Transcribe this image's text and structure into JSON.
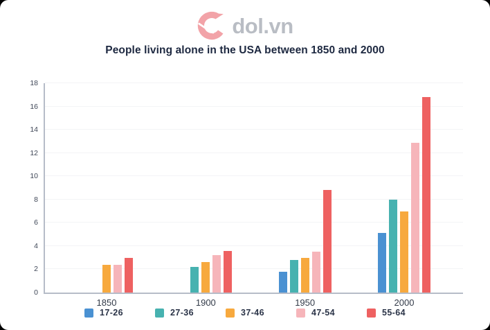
{
  "logo": {
    "text": "dol.vn",
    "mark_color": "#f2a3a8"
  },
  "title": "People living alone in the USA between 1850 and 2000",
  "chart_data": {
    "type": "bar",
    "title": "People living alone in the USA between 1850 and 2000",
    "categories": [
      "1850",
      "1900",
      "1950",
      "2000"
    ],
    "series": [
      {
        "name": "17-26",
        "color": "#4a91d2",
        "values": [
          0,
          0,
          1.8,
          5.1
        ]
      },
      {
        "name": "27-36",
        "color": "#47b2b0",
        "values": [
          0,
          2.2,
          2.8,
          8.0
        ]
      },
      {
        "name": "37-46",
        "color": "#f7a93e",
        "values": [
          2.4,
          2.6,
          3.0,
          7.0
        ]
      },
      {
        "name": "47-54",
        "color": "#f6b5ba",
        "values": [
          2.4,
          3.2,
          3.5,
          12.9
        ]
      },
      {
        "name": "55-64",
        "color": "#ee6161",
        "values": [
          3.0,
          3.6,
          8.8,
          16.8
        ]
      }
    ],
    "xlabel": "",
    "ylabel": "",
    "ylim": [
      0,
      18
    ],
    "ytick_step": 2,
    "grid": true,
    "legend_position": "bottom",
    "axis_color": "#b6bcc8",
    "gridline_color": "#f3f4f6"
  }
}
